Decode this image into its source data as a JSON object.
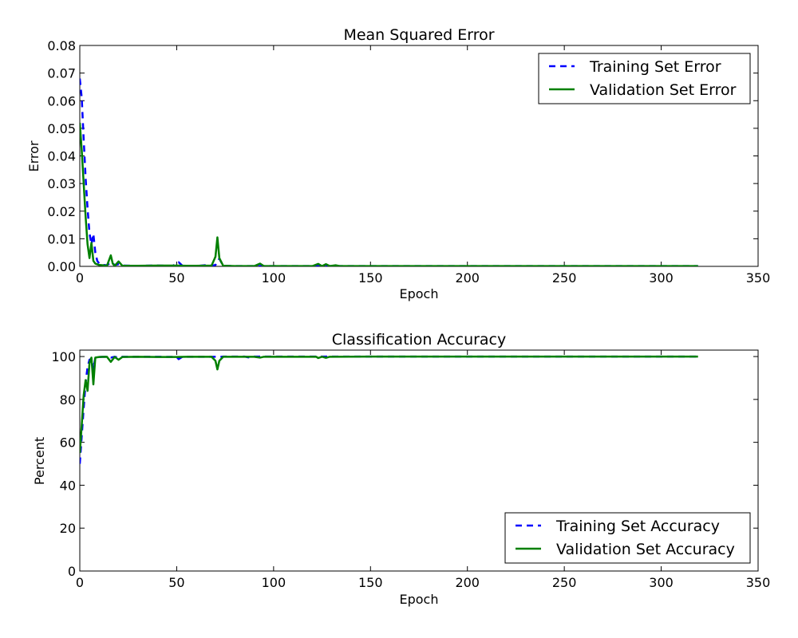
{
  "chart_data": [
    {
      "type": "line",
      "title": "Mean Squared Error",
      "xlabel": "Epoch",
      "ylabel": "Error",
      "xlim": [
        0,
        350
      ],
      "ylim": [
        0,
        0.08
      ],
      "x_ticks": [
        "0",
        "50",
        "100",
        "150",
        "200",
        "250",
        "300",
        "350"
      ],
      "y_ticks": [
        "0.00",
        "0.01",
        "0.02",
        "0.03",
        "0.04",
        "0.05",
        "0.06",
        "0.07",
        "0.08"
      ],
      "legend_position": "top-right",
      "grid": false,
      "series": [
        {
          "name": "Training Set Error",
          "color": "#0000ff",
          "style": "dashed",
          "points": [
            [
              0,
              0.068
            ],
            [
              1,
              0.061
            ],
            [
              2,
              0.046
            ],
            [
              3,
              0.032
            ],
            [
              4,
              0.021
            ],
            [
              5,
              0.012
            ],
            [
              6,
              0.008
            ],
            [
              7,
              0.0118
            ],
            [
              8,
              0.005
            ],
            [
              9,
              0.002
            ],
            [
              10,
              0.001
            ],
            [
              12,
              0.0005
            ],
            [
              14,
              0.0004
            ],
            [
              16,
              0.0015
            ],
            [
              18,
              0.0005
            ],
            [
              20,
              0.0008
            ],
            [
              22,
              0.0003
            ],
            [
              30,
              0.0002
            ],
            [
              40,
              0.0003
            ],
            [
              48,
              0.0002
            ],
            [
              51,
              0.0015
            ],
            [
              53,
              0.0002
            ],
            [
              60,
              0.0001
            ],
            [
              66,
              0.0005
            ],
            [
              68,
              0.0002
            ],
            [
              70,
              0.0005
            ],
            [
              72,
              0.0028
            ],
            [
              74,
              0.0002
            ],
            [
              80,
              0.0001
            ],
            [
              90,
              0.0001
            ],
            [
              100,
              0.0001
            ],
            [
              150,
              0.0001
            ],
            [
              200,
              0.0001
            ],
            [
              250,
              0.0001
            ],
            [
              300,
              0.0001
            ],
            [
              319,
              0.0001
            ]
          ]
        },
        {
          "name": "Validation Set Error",
          "color": "#008000",
          "style": "solid",
          "points": [
            [
              0,
              0.052
            ],
            [
              1,
              0.042
            ],
            [
              2,
              0.03
            ],
            [
              3,
              0.018
            ],
            [
              4,
              0.008
            ],
            [
              5,
              0.003
            ],
            [
              6,
              0.0085
            ],
            [
              7,
              0.002
            ],
            [
              8,
              0.001
            ],
            [
              10,
              0.0005
            ],
            [
              12,
              0.0004
            ],
            [
              14,
              0.0002
            ],
            [
              16,
              0.004
            ],
            [
              17,
              0.001
            ],
            [
              18,
              0.0002
            ],
            [
              20,
              0.0018
            ],
            [
              22,
              0.0002
            ],
            [
              30,
              0.0002
            ],
            [
              40,
              0.0003
            ],
            [
              50,
              0.0003
            ],
            [
              55,
              0.0002
            ],
            [
              60,
              0.0002
            ],
            [
              68,
              0.0003
            ],
            [
              70,
              0.0035
            ],
            [
              71,
              0.0105
            ],
            [
              72,
              0.003
            ],
            [
              74,
              0.0002
            ],
            [
              80,
              0.0001
            ],
            [
              90,
              0.0001
            ],
            [
              93,
              0.001
            ],
            [
              95,
              0.0001
            ],
            [
              110,
              0.0001
            ],
            [
              120,
              0.0001
            ],
            [
              123,
              0.0009
            ],
            [
              125,
              0.0001
            ],
            [
              127,
              0.0008
            ],
            [
              129,
              0.0001
            ],
            [
              132,
              0.0004
            ],
            [
              134,
              0.0001
            ],
            [
              150,
              0.0001
            ],
            [
              200,
              0.0001
            ],
            [
              250,
              0.0001
            ],
            [
              300,
              0.0001
            ],
            [
              319,
              0.0001
            ]
          ]
        }
      ]
    },
    {
      "type": "line",
      "title": "Classification Accuracy",
      "xlabel": "Epoch",
      "ylabel": "Percent",
      "xlim": [
        0,
        350
      ],
      "ylim": [
        0,
        103
      ],
      "x_ticks": [
        "0",
        "50",
        "100",
        "150",
        "200",
        "250",
        "300",
        "350"
      ],
      "y_ticks": [
        "0",
        "20",
        "40",
        "60",
        "80",
        "100"
      ],
      "legend_position": "bottom-right",
      "grid": false,
      "series": [
        {
          "name": "Training Set Accuracy",
          "color": "#0000ff",
          "style": "dashed",
          "points": [
            [
              0,
              50
            ],
            [
              1,
              63
            ],
            [
              2,
              76
            ],
            [
              3,
              88
            ],
            [
              4,
              95
            ],
            [
              5,
              98.5
            ],
            [
              6,
              99
            ],
            [
              7,
              94
            ],
            [
              8,
              99.5
            ],
            [
              10,
              99.8
            ],
            [
              14,
              99.9
            ],
            [
              16,
              99.5
            ],
            [
              18,
              99.9
            ],
            [
              20,
              99.5
            ],
            [
              22,
              99.9
            ],
            [
              40,
              99.9
            ],
            [
              50,
              99.8
            ],
            [
              51,
              98.8
            ],
            [
              53,
              99.9
            ],
            [
              70,
              99.9
            ],
            [
              72,
              99.8
            ],
            [
              74,
              100
            ],
            [
              85,
              100
            ],
            [
              87,
              99.6
            ],
            [
              89,
              100
            ],
            [
              93,
              100
            ],
            [
              100,
              100
            ],
            [
              150,
              100
            ],
            [
              200,
              100
            ],
            [
              250,
              100
            ],
            [
              300,
              100
            ],
            [
              319,
              100
            ]
          ]
        },
        {
          "name": "Validation Set Accuracy",
          "color": "#008000",
          "style": "solid",
          "points": [
            [
              0,
              55
            ],
            [
              1,
              68
            ],
            [
              2,
              82
            ],
            [
              3,
              89
            ],
            [
              4,
              84
            ],
            [
              5,
              97
            ],
            [
              6,
              99.5
            ],
            [
              7,
              87
            ],
            [
              8,
              99.5
            ],
            [
              10,
              99.8
            ],
            [
              14,
              99.9
            ],
            [
              16,
              97.5
            ],
            [
              18,
              99.8
            ],
            [
              20,
              98.5
            ],
            [
              22,
              99.8
            ],
            [
              30,
              99.9
            ],
            [
              40,
              99.8
            ],
            [
              50,
              99.8
            ],
            [
              55,
              99.9
            ],
            [
              68,
              99.9
            ],
            [
              70,
              98
            ],
            [
              71,
              94
            ],
            [
              72,
              98
            ],
            [
              74,
              99.9
            ],
            [
              90,
              99.9
            ],
            [
              93,
              99.5
            ],
            [
              95,
              99.9
            ],
            [
              122,
              99.9
            ],
            [
              123,
              99.3
            ],
            [
              125,
              99.9
            ],
            [
              127,
              99.4
            ],
            [
              129,
              99.9
            ],
            [
              150,
              100
            ],
            [
              200,
              100
            ],
            [
              250,
              100
            ],
            [
              300,
              100
            ],
            [
              319,
              100
            ]
          ]
        }
      ]
    }
  ]
}
